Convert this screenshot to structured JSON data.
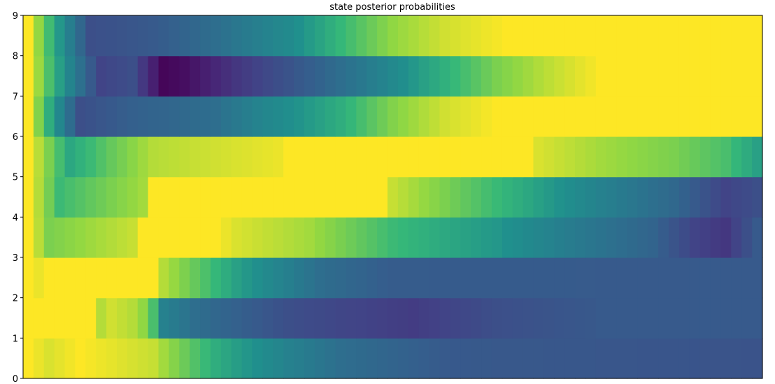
{
  "chart_data": {
    "type": "heatmap",
    "title": "state posterior probabilities",
    "xlabel": "",
    "ylabel": "",
    "colormap": "viridis",
    "value_range": [
      0,
      1
    ],
    "n_columns": 71,
    "ylim": [
      0,
      9
    ],
    "y_tick_labels": [
      "0",
      "1",
      "2",
      "3",
      "4",
      "5",
      "6",
      "7",
      "8",
      "9"
    ],
    "x_ticks_shown": false,
    "rows": [
      {
        "y": 0,
        "anchors": [
          [
            0,
            1.0
          ],
          [
            2,
            0.96
          ],
          [
            5,
            1.0
          ],
          [
            12,
            0.94
          ],
          [
            13,
            0.9
          ],
          [
            18,
            0.72
          ],
          [
            25,
            0.55
          ],
          [
            30,
            0.45
          ],
          [
            40,
            0.35
          ],
          [
            60,
            0.33
          ],
          [
            70,
            0.32
          ]
        ]
      },
      {
        "y": 1,
        "anchors": [
          [
            0,
            1.0
          ],
          [
            6,
            1.0
          ],
          [
            7,
            0.92
          ],
          [
            8,
            0.95
          ],
          [
            10,
            0.92
          ],
          [
            11,
            0.88
          ],
          [
            12,
            0.78
          ],
          [
            13,
            0.55
          ],
          [
            16,
            0.45
          ],
          [
            25,
            0.3
          ],
          [
            30,
            0.26
          ],
          [
            37,
            0.22
          ],
          [
            45,
            0.3
          ],
          [
            55,
            0.35
          ],
          [
            70,
            0.35
          ]
        ]
      },
      {
        "y": 2,
        "anchors": [
          [
            0,
            1.0
          ],
          [
            1,
            0.98
          ],
          [
            2,
            1.0
          ],
          [
            12,
            1.0
          ],
          [
            13,
            0.92
          ],
          [
            16,
            0.82
          ],
          [
            20,
            0.68
          ],
          [
            28,
            0.45
          ],
          [
            35,
            0.36
          ],
          [
            70,
            0.35
          ]
        ]
      },
      {
        "y": 3,
        "anchors": [
          [
            0,
            1.0
          ],
          [
            2,
            0.85
          ],
          [
            10,
            0.94
          ],
          [
            11,
            1.0
          ],
          [
            18,
            1.0
          ],
          [
            20,
            0.96
          ],
          [
            27,
            0.9
          ],
          [
            35,
            0.76
          ],
          [
            45,
            0.65
          ],
          [
            52,
            0.52
          ],
          [
            60,
            0.4
          ],
          [
            64,
            0.25
          ],
          [
            67,
            0.2
          ],
          [
            70,
            0.35
          ]
        ]
      },
      {
        "y": 4,
        "anchors": [
          [
            0,
            1.0
          ],
          [
            3,
            0.76
          ],
          [
            8,
            0.85
          ],
          [
            11,
            0.9
          ],
          [
            12,
            1.0
          ],
          [
            34,
            1.0
          ],
          [
            35,
            0.94
          ],
          [
            40,
            0.85
          ],
          [
            48,
            0.7
          ],
          [
            55,
            0.55
          ],
          [
            62,
            0.42
          ],
          [
            67,
            0.25
          ],
          [
            70,
            0.3
          ]
        ]
      },
      {
        "y": 5,
        "anchors": [
          [
            0,
            1.0
          ],
          [
            4,
            0.7
          ],
          [
            8,
            0.82
          ],
          [
            12,
            0.92
          ],
          [
            24,
            0.98
          ],
          [
            25,
            1.0
          ],
          [
            48,
            1.0
          ],
          [
            49,
            0.96
          ],
          [
            55,
            0.9
          ],
          [
            62,
            0.85
          ],
          [
            67,
            0.78
          ],
          [
            70,
            0.68
          ]
        ]
      },
      {
        "y": 6,
        "anchors": [
          [
            0,
            1.0
          ],
          [
            5,
            0.3
          ],
          [
            10,
            0.38
          ],
          [
            18,
            0.45
          ],
          [
            22,
            0.56
          ],
          [
            30,
            0.72
          ],
          [
            35,
            0.86
          ],
          [
            40,
            0.95
          ],
          [
            45,
            1.0
          ],
          [
            70,
            1.0
          ]
        ]
      },
      {
        "y": 7,
        "anchors": [
          [
            0,
            1.0
          ],
          [
            6,
            0.35
          ],
          [
            7,
            0.25
          ],
          [
            10,
            0.3
          ],
          [
            13,
            0.02
          ],
          [
            15,
            0.05
          ],
          [
            20,
            0.2
          ],
          [
            25,
            0.32
          ],
          [
            32,
            0.5
          ],
          [
            38,
            0.68
          ],
          [
            45,
            0.85
          ],
          [
            50,
            0.93
          ],
          [
            55,
            1.0
          ],
          [
            70,
            1.0
          ]
        ]
      },
      {
        "y": 8,
        "anchors": [
          [
            0,
            1.0
          ],
          [
            6,
            0.3
          ],
          [
            12,
            0.35
          ],
          [
            18,
            0.45
          ],
          [
            25,
            0.6
          ],
          [
            30,
            0.75
          ],
          [
            35,
            0.88
          ],
          [
            40,
            0.95
          ],
          [
            46,
            1.0
          ],
          [
            70,
            1.0
          ]
        ]
      }
    ]
  }
}
